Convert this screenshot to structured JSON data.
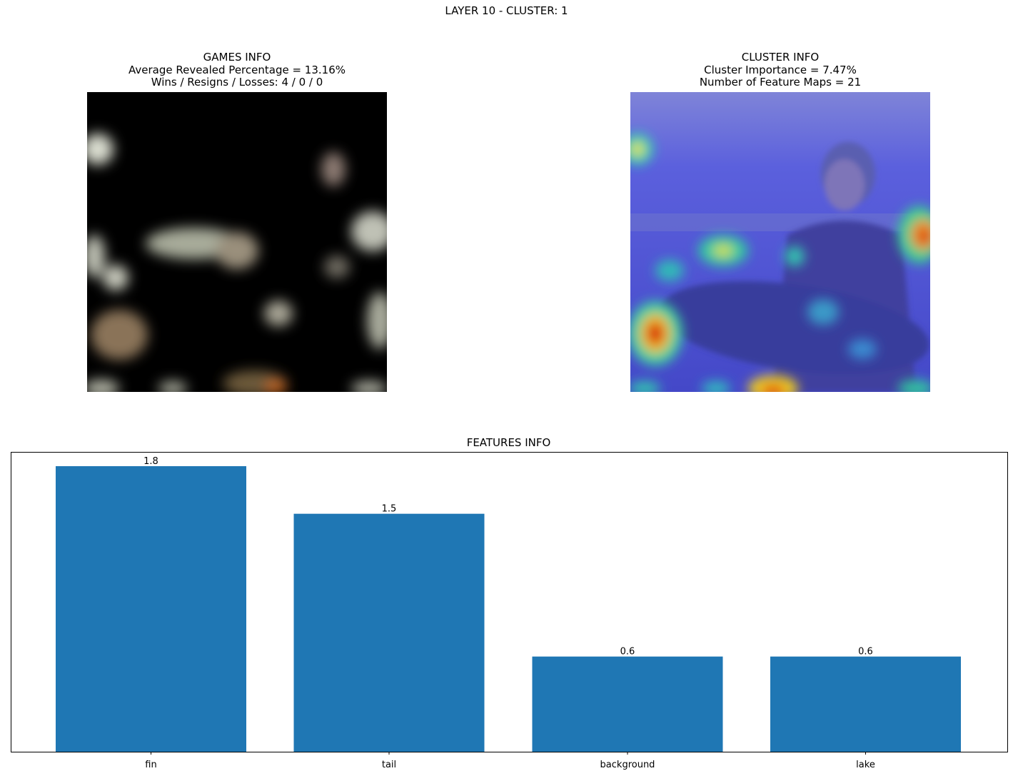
{
  "figure": {
    "suptitle": "LAYER 10 - CLUSTER: 1"
  },
  "games_panel": {
    "title": "GAMES INFO",
    "line1": "Average Revealed Percentage = 13.16%",
    "line2": "Wins / Resigns / Losses: 4 / 0 / 0"
  },
  "cluster_panel": {
    "title": "CLUSTER INFO",
    "line1": "Cluster Importance = 7.47%",
    "line2": "Number of Feature Maps = 21"
  },
  "colors": {
    "bar": "#1f77b4",
    "heatmap_base": "#4a4fe0"
  },
  "chart_data": {
    "type": "bar",
    "title": "FEATURES INFO",
    "categories": [
      "fin",
      "tail",
      "background",
      "lake"
    ],
    "values": [
      1.8,
      1.5,
      0.6,
      0.6
    ],
    "data_labels": [
      "1.8",
      "1.5",
      "0.6",
      "0.6"
    ],
    "ylim": [
      0,
      1.89
    ],
    "xlabel": "",
    "ylabel": "",
    "y_ticks_visible": false,
    "grid": false
  }
}
